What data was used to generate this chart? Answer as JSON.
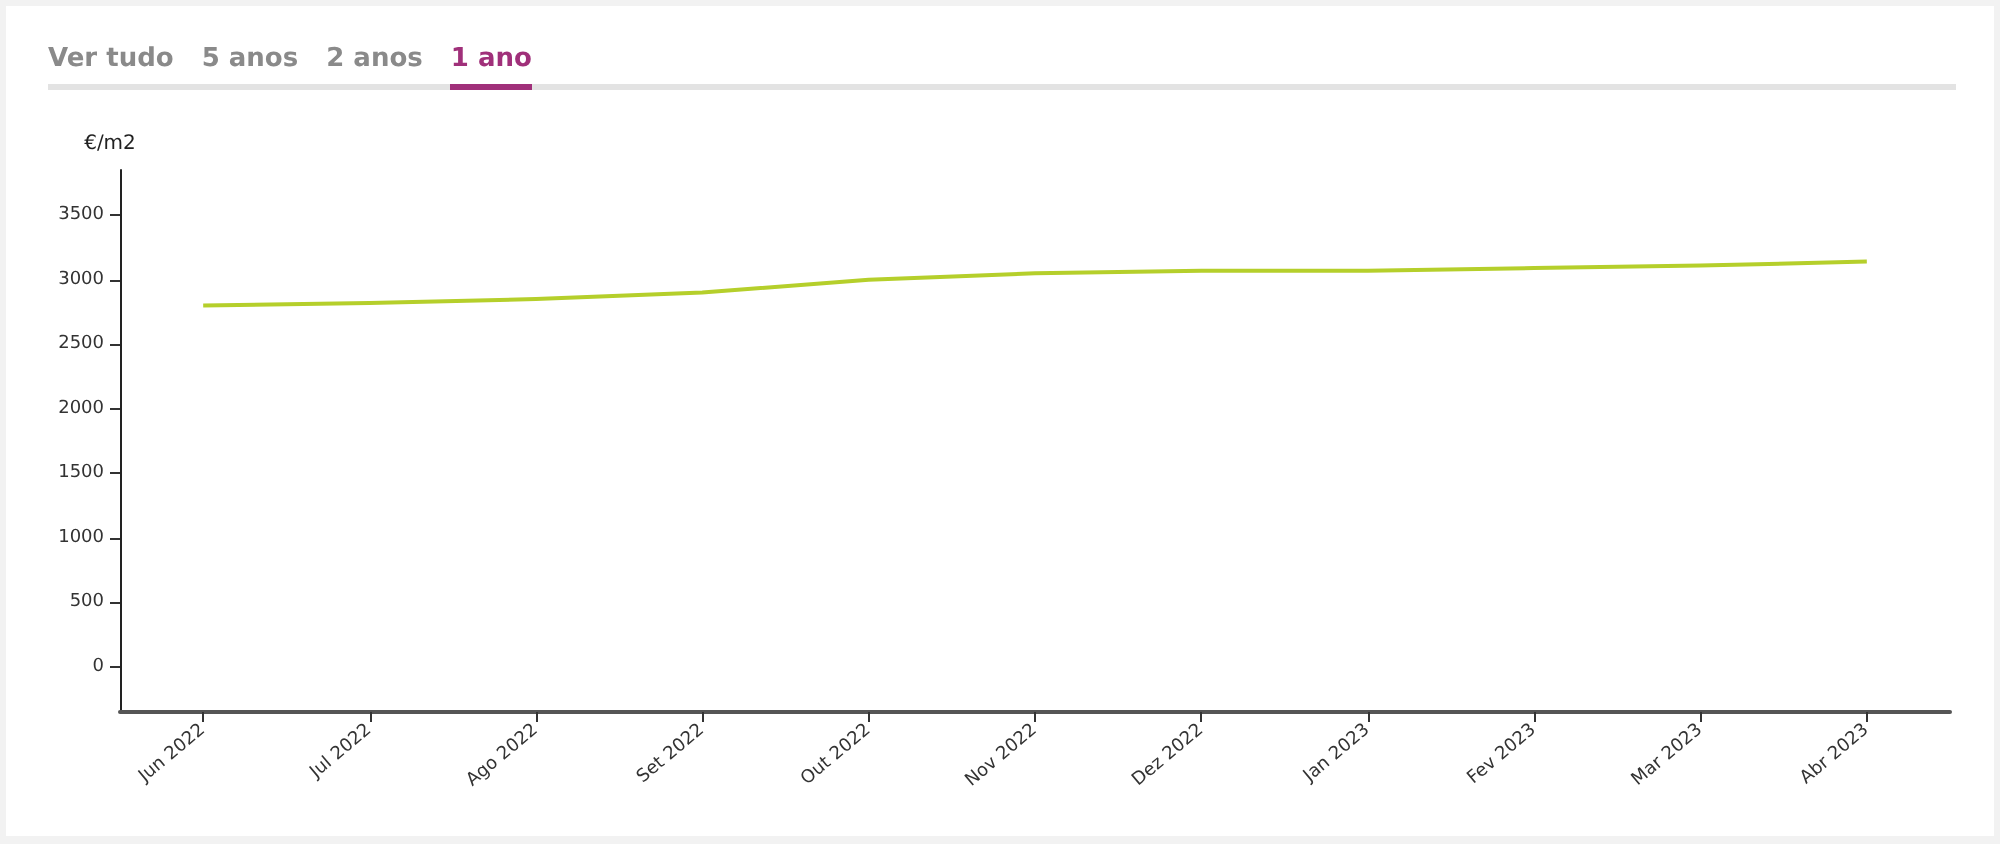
{
  "chart_data": {
    "type": "line",
    "ylabel": "€/m2",
    "categories": [
      "Jun 2022",
      "Jul 2022",
      "Ago 2022",
      "Set 2022",
      "Out 2022",
      "Nov 2022",
      "Dez 2022",
      "Jan 2023",
      "Fev 2023",
      "Mar 2023",
      "Abr 2023"
    ],
    "series": [
      {
        "color": "#b5cf2b",
        "values": [
          2800,
          2820,
          2850,
          2900,
          3000,
          3050,
          3070,
          3070,
          3090,
          3110,
          3140
        ]
      }
    ],
    "ylim": [
      -350,
      3850
    ],
    "yticks": [
      0,
      500,
      1000,
      1500,
      2000,
      2500,
      3000,
      3500
    ],
    "annotations": [
      "Ver tudo",
      "5 anos",
      "2 anos",
      "1 ano"
    ],
    "marker": "none",
    "line_style": "solid"
  }
}
